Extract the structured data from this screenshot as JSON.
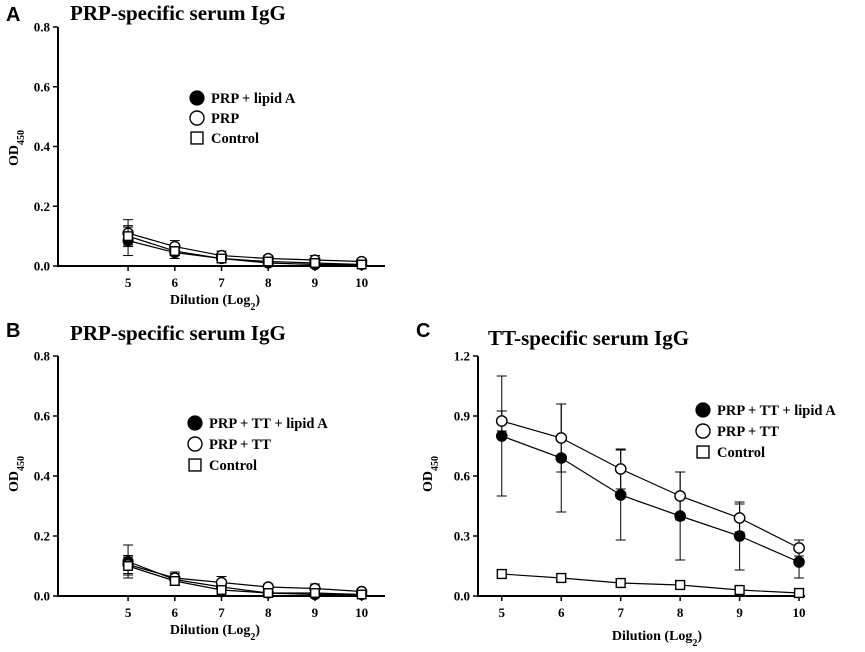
{
  "chart_data": [
    {
      "id": "A",
      "type": "line",
      "panel_label": "A",
      "title": "PRP-specific serum IgG",
      "xlabel": "Dilution (Log",
      "xlabel_sub": "2",
      "xlabel_close": ")",
      "ylabel": "OD",
      "ylabel_sub": "450",
      "x": [
        5,
        6,
        7,
        8,
        9,
        10
      ],
      "xlim": [
        3.5,
        10.5
      ],
      "ylim": [
        0,
        0.8
      ],
      "yticks": [
        0.0,
        0.2,
        0.4,
        0.6,
        0.8
      ],
      "ytick_labels": [
        "0.0",
        "0.2",
        "0.4",
        "0.6",
        "0.8"
      ],
      "xtick_labels": [
        "5",
        "6",
        "7",
        "8",
        "9",
        "10"
      ],
      "legend": "upper-middle",
      "series": [
        {
          "name": "PRP + lipid A",
          "marker": "filled-circle",
          "values": [
            0.085,
            0.045,
            0.025,
            0.01,
            0.005,
            0.005
          ],
          "errors": [
            0.05,
            0.02,
            0.015,
            0.01,
            0.01,
            0.005
          ]
        },
        {
          "name": "PRP",
          "marker": "open-circle",
          "values": [
            0.11,
            0.065,
            0.035,
            0.025,
            0.02,
            0.015
          ],
          "errors": [
            0.045,
            0.02,
            0.015,
            0.01,
            0.015,
            0.008
          ]
        },
        {
          "name": "Control",
          "marker": "open-square",
          "values": [
            0.1,
            0.05,
            0.025,
            0.015,
            0.01,
            0.005
          ],
          "errors": [
            0.03,
            0.015,
            0.01,
            0.01,
            0.015,
            0.005
          ]
        }
      ]
    },
    {
      "id": "B",
      "type": "line",
      "panel_label": "B",
      "title": "PRP-specific serum IgG",
      "xlabel": "Dilution (Log",
      "xlabel_sub": "2",
      "xlabel_close": ")",
      "ylabel": "OD",
      "ylabel_sub": "450",
      "x": [
        5,
        6,
        7,
        8,
        9,
        10
      ],
      "xlim": [
        3.5,
        10.5
      ],
      "ylim": [
        0,
        0.8
      ],
      "yticks": [
        0.0,
        0.2,
        0.4,
        0.6,
        0.8
      ],
      "ytick_labels": [
        "0.0",
        "0.2",
        "0.4",
        "0.6",
        "0.8"
      ],
      "xtick_labels": [
        "5",
        "6",
        "7",
        "8",
        "9",
        "10"
      ],
      "legend": "middle-right",
      "series": [
        {
          "name": "PRP + TT + lipid A",
          "marker": "filled-circle",
          "values": [
            0.115,
            0.055,
            0.03,
            0.01,
            0.005,
            0.005
          ],
          "errors": [
            0.055,
            0.02,
            0.015,
            0.01,
            0.01,
            0.005
          ]
        },
        {
          "name": "PRP + TT",
          "marker": "open-circle",
          "values": [
            0.105,
            0.06,
            0.045,
            0.03,
            0.025,
            0.015
          ],
          "errors": [
            0.03,
            0.02,
            0.02,
            0.01,
            0.015,
            0.008
          ]
        },
        {
          "name": "Control",
          "marker": "open-square",
          "values": [
            0.1,
            0.05,
            0.02,
            0.01,
            0.01,
            0.005
          ],
          "errors": [
            0.03,
            0.015,
            0.01,
            0.01,
            0.01,
            0.005
          ]
        }
      ]
    },
    {
      "id": "C",
      "type": "line",
      "panel_label": "C",
      "title": "TT-specific serum IgG",
      "xlabel": "Dilution (Log",
      "xlabel_sub": "2",
      "xlabel_close": ")",
      "ylabel": "OD",
      "ylabel_sub": "450",
      "x": [
        5,
        6,
        7,
        8,
        9,
        10
      ],
      "xlim": [
        4.6,
        10.1
      ],
      "ylim": [
        0,
        1.2
      ],
      "yticks": [
        0.0,
        0.3,
        0.6,
        0.9,
        1.2
      ],
      "ytick_labels": [
        "0.0",
        "0.3",
        "0.6",
        "0.9",
        "1.2"
      ],
      "xtick_labels": [
        "5",
        "6",
        "7",
        "8",
        "9",
        "10"
      ],
      "legend": "upper-right",
      "series": [
        {
          "name": "PRP + TT + lipid A",
          "marker": "filled-circle",
          "values": [
            0.8,
            0.69,
            0.505,
            0.4,
            0.3,
            0.17
          ],
          "errors": [
            0.3,
            0.27,
            0.225,
            0.22,
            0.17,
            0.08
          ]
        },
        {
          "name": "PRP + TT",
          "marker": "open-circle",
          "values": [
            0.875,
            0.79,
            0.635,
            0.5,
            0.39,
            0.24
          ],
          "errors": [
            0.05,
            0.17,
            0.1,
            0.12,
            0.07,
            0.04
          ]
        },
        {
          "name": "Control",
          "marker": "open-square",
          "values": [
            0.11,
            0.09,
            0.065,
            0.055,
            0.03,
            0.015
          ],
          "errors": [
            0.02,
            0.02,
            0.02,
            0.015,
            0.01,
            0.01
          ]
        }
      ]
    }
  ]
}
